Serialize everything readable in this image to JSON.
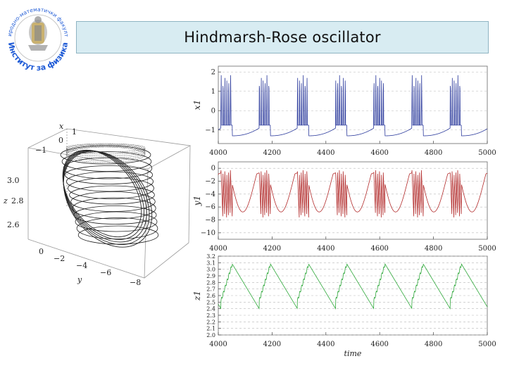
{
  "slide": {
    "title": "Hindmarsh-Rose oscillator",
    "logo": {
      "top_text": "природно-математички факултет",
      "bottom_text": "Институт за физика",
      "colors": {
        "blue": "#1f5bd6",
        "gold": "#c9a64a",
        "grey": "#8a8a8a"
      }
    }
  },
  "attractor_3d": {
    "x_axis_label": "x",
    "y_axis_label": "y",
    "z_axis_label": "z",
    "x_ticks": [
      "1",
      "0",
      "−1"
    ],
    "y_ticks": [
      "0",
      "−2",
      "−4",
      "−6",
      "−8"
    ],
    "z_ticks": [
      "3.0",
      "2.8",
      "2.6"
    ]
  },
  "chart_data": [
    {
      "type": "line",
      "name": "x1-panel",
      "ylabel": "x1",
      "xlabel": "",
      "xlim": [
        4000,
        5000
      ],
      "ylim": [
        -1.7,
        2.3
      ],
      "x_ticks": [
        "4000",
        "4200",
        "4400",
        "4600",
        "4800",
        "5000"
      ],
      "y_ticks": [
        "2",
        "1",
        "0",
        "−1"
      ],
      "y_tick_values": [
        2,
        1,
        0,
        -1
      ],
      "color": "#2b3a9c",
      "burst_period": 142,
      "burst_start": 4010,
      "burst_duration": 42,
      "spikes_per_burst": 6,
      "baseline_low": -1.3,
      "baseline_high": -0.9,
      "peak": 1.9,
      "samples": 1200
    },
    {
      "type": "line",
      "name": "y1-panel",
      "ylabel": "y1",
      "xlabel": "",
      "xlim": [
        4000,
        5000
      ],
      "ylim": [
        -11,
        1
      ],
      "x_ticks": [
        "4000",
        "4200",
        "4400",
        "4600",
        "4800",
        "5000"
      ],
      "y_ticks": [
        "0",
        "−2",
        "−4",
        "−6",
        "−8",
        "−10"
      ],
      "y_tick_values": [
        0,
        -2,
        -4,
        -6,
        -8,
        -10
      ],
      "color": "#b22a2a",
      "burst_period": 142,
      "burst_start": 4010,
      "burst_duration": 42,
      "spikes_per_burst": 6,
      "trough": -8.4,
      "top": -0.3,
      "samples": 1200
    },
    {
      "type": "line",
      "name": "z1-panel",
      "ylabel": "z1",
      "xlabel": "time",
      "xlim": [
        4000,
        5000
      ],
      "ylim": [
        2.0,
        3.2
      ],
      "x_ticks": [
        "4000",
        "4200",
        "4400",
        "4600",
        "4800",
        "5000"
      ],
      "y_ticks": [
        "3.2",
        "3.1",
        "3.0",
        "2.9",
        "2.8",
        "2.7",
        "2.6",
        "2.5",
        "2.4",
        "2.3",
        "2.2",
        "2.1",
        "2.0"
      ],
      "y_tick_values": [
        3.2,
        3.1,
        3.0,
        2.9,
        2.8,
        2.7,
        2.6,
        2.5,
        2.4,
        2.3,
        2.2,
        2.1,
        2.0
      ],
      "color": "#2ea83a",
      "burst_period": 142,
      "burst_start": 4010,
      "burst_duration": 42,
      "min": 2.4,
      "max": 3.08,
      "samples": 1200
    }
  ]
}
